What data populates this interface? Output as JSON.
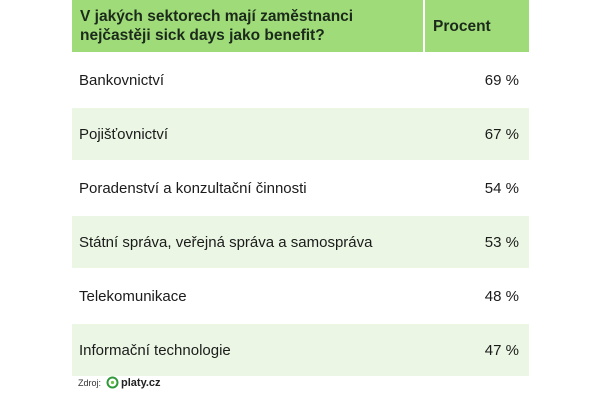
{
  "chart_data": {
    "type": "table",
    "columns": [
      "V jakých sektorech mají zaměstnanci nejčastěji sick days jako benefit?",
      "Procent"
    ],
    "rows": [
      {
        "sector": "Bankovnictví",
        "value": "69 %"
      },
      {
        "sector": "Pojišťovnictví",
        "value": "67 %"
      },
      {
        "sector": "Poradenství a konzultační činnosti",
        "value": "54 %"
      },
      {
        "sector": "Státní správa, veřejná správa a samospráva",
        "value": "53 %"
      },
      {
        "sector": "Telekomunikace",
        "value": "48 %"
      },
      {
        "sector": "Informační technologie",
        "value": "47 %"
      }
    ],
    "values": [
      69,
      67,
      54,
      53,
      48,
      47
    ]
  },
  "footer": {
    "source_label": "Zdroj:",
    "brand": "platy.cz"
  },
  "colors": {
    "header_bg": "#9fdc79",
    "alt_row_bg": "#ebf7e4"
  }
}
